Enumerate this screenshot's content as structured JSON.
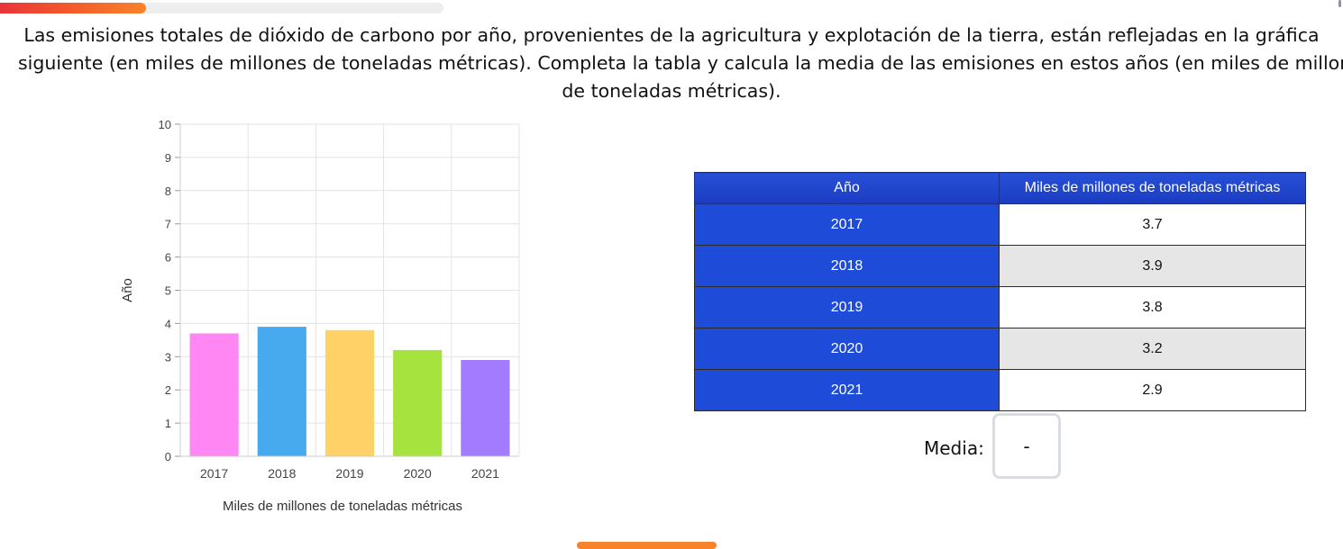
{
  "progress": {
    "fraction": 0.33
  },
  "question": {
    "line1": "Las emisiones totales de dióxido de carbono por año, provenientes de la agricultura y explotación de la tierra, están reflejadas en la gráfica",
    "line2": "siguiente (en miles de millones de toneladas métricas). Completa la tabla y calcula la media de las emisiones en estos años (en miles de millones",
    "line3": "de toneladas métricas)."
  },
  "chart_data": {
    "type": "bar",
    "categories": [
      "2017",
      "2018",
      "2019",
      "2020",
      "2021"
    ],
    "values": [
      3.7,
      3.9,
      3.8,
      3.2,
      2.9
    ],
    "colors": [
      "#ff87f4",
      "#48aaee",
      "#ffd166",
      "#a7e33f",
      "#a27bff"
    ],
    "xlabel": "Miles de millones de toneladas métricas",
    "ylabel": "Año",
    "ylim": [
      0,
      10
    ],
    "yticks": [
      "0",
      "1",
      "2",
      "3",
      "4",
      "5",
      "6",
      "7",
      "8",
      "9",
      "10"
    ],
    "grid": true
  },
  "table": {
    "headers": [
      "Año",
      "Miles de millones de toneladas métricas"
    ],
    "rows": [
      {
        "year": "2017",
        "value": "3.7"
      },
      {
        "year": "2018",
        "value": "3.9"
      },
      {
        "year": "2019",
        "value": "3.8"
      },
      {
        "year": "2020",
        "value": "3.2"
      },
      {
        "year": "2021",
        "value": "2.9"
      }
    ]
  },
  "media": {
    "label": "Media:",
    "value": "-"
  }
}
